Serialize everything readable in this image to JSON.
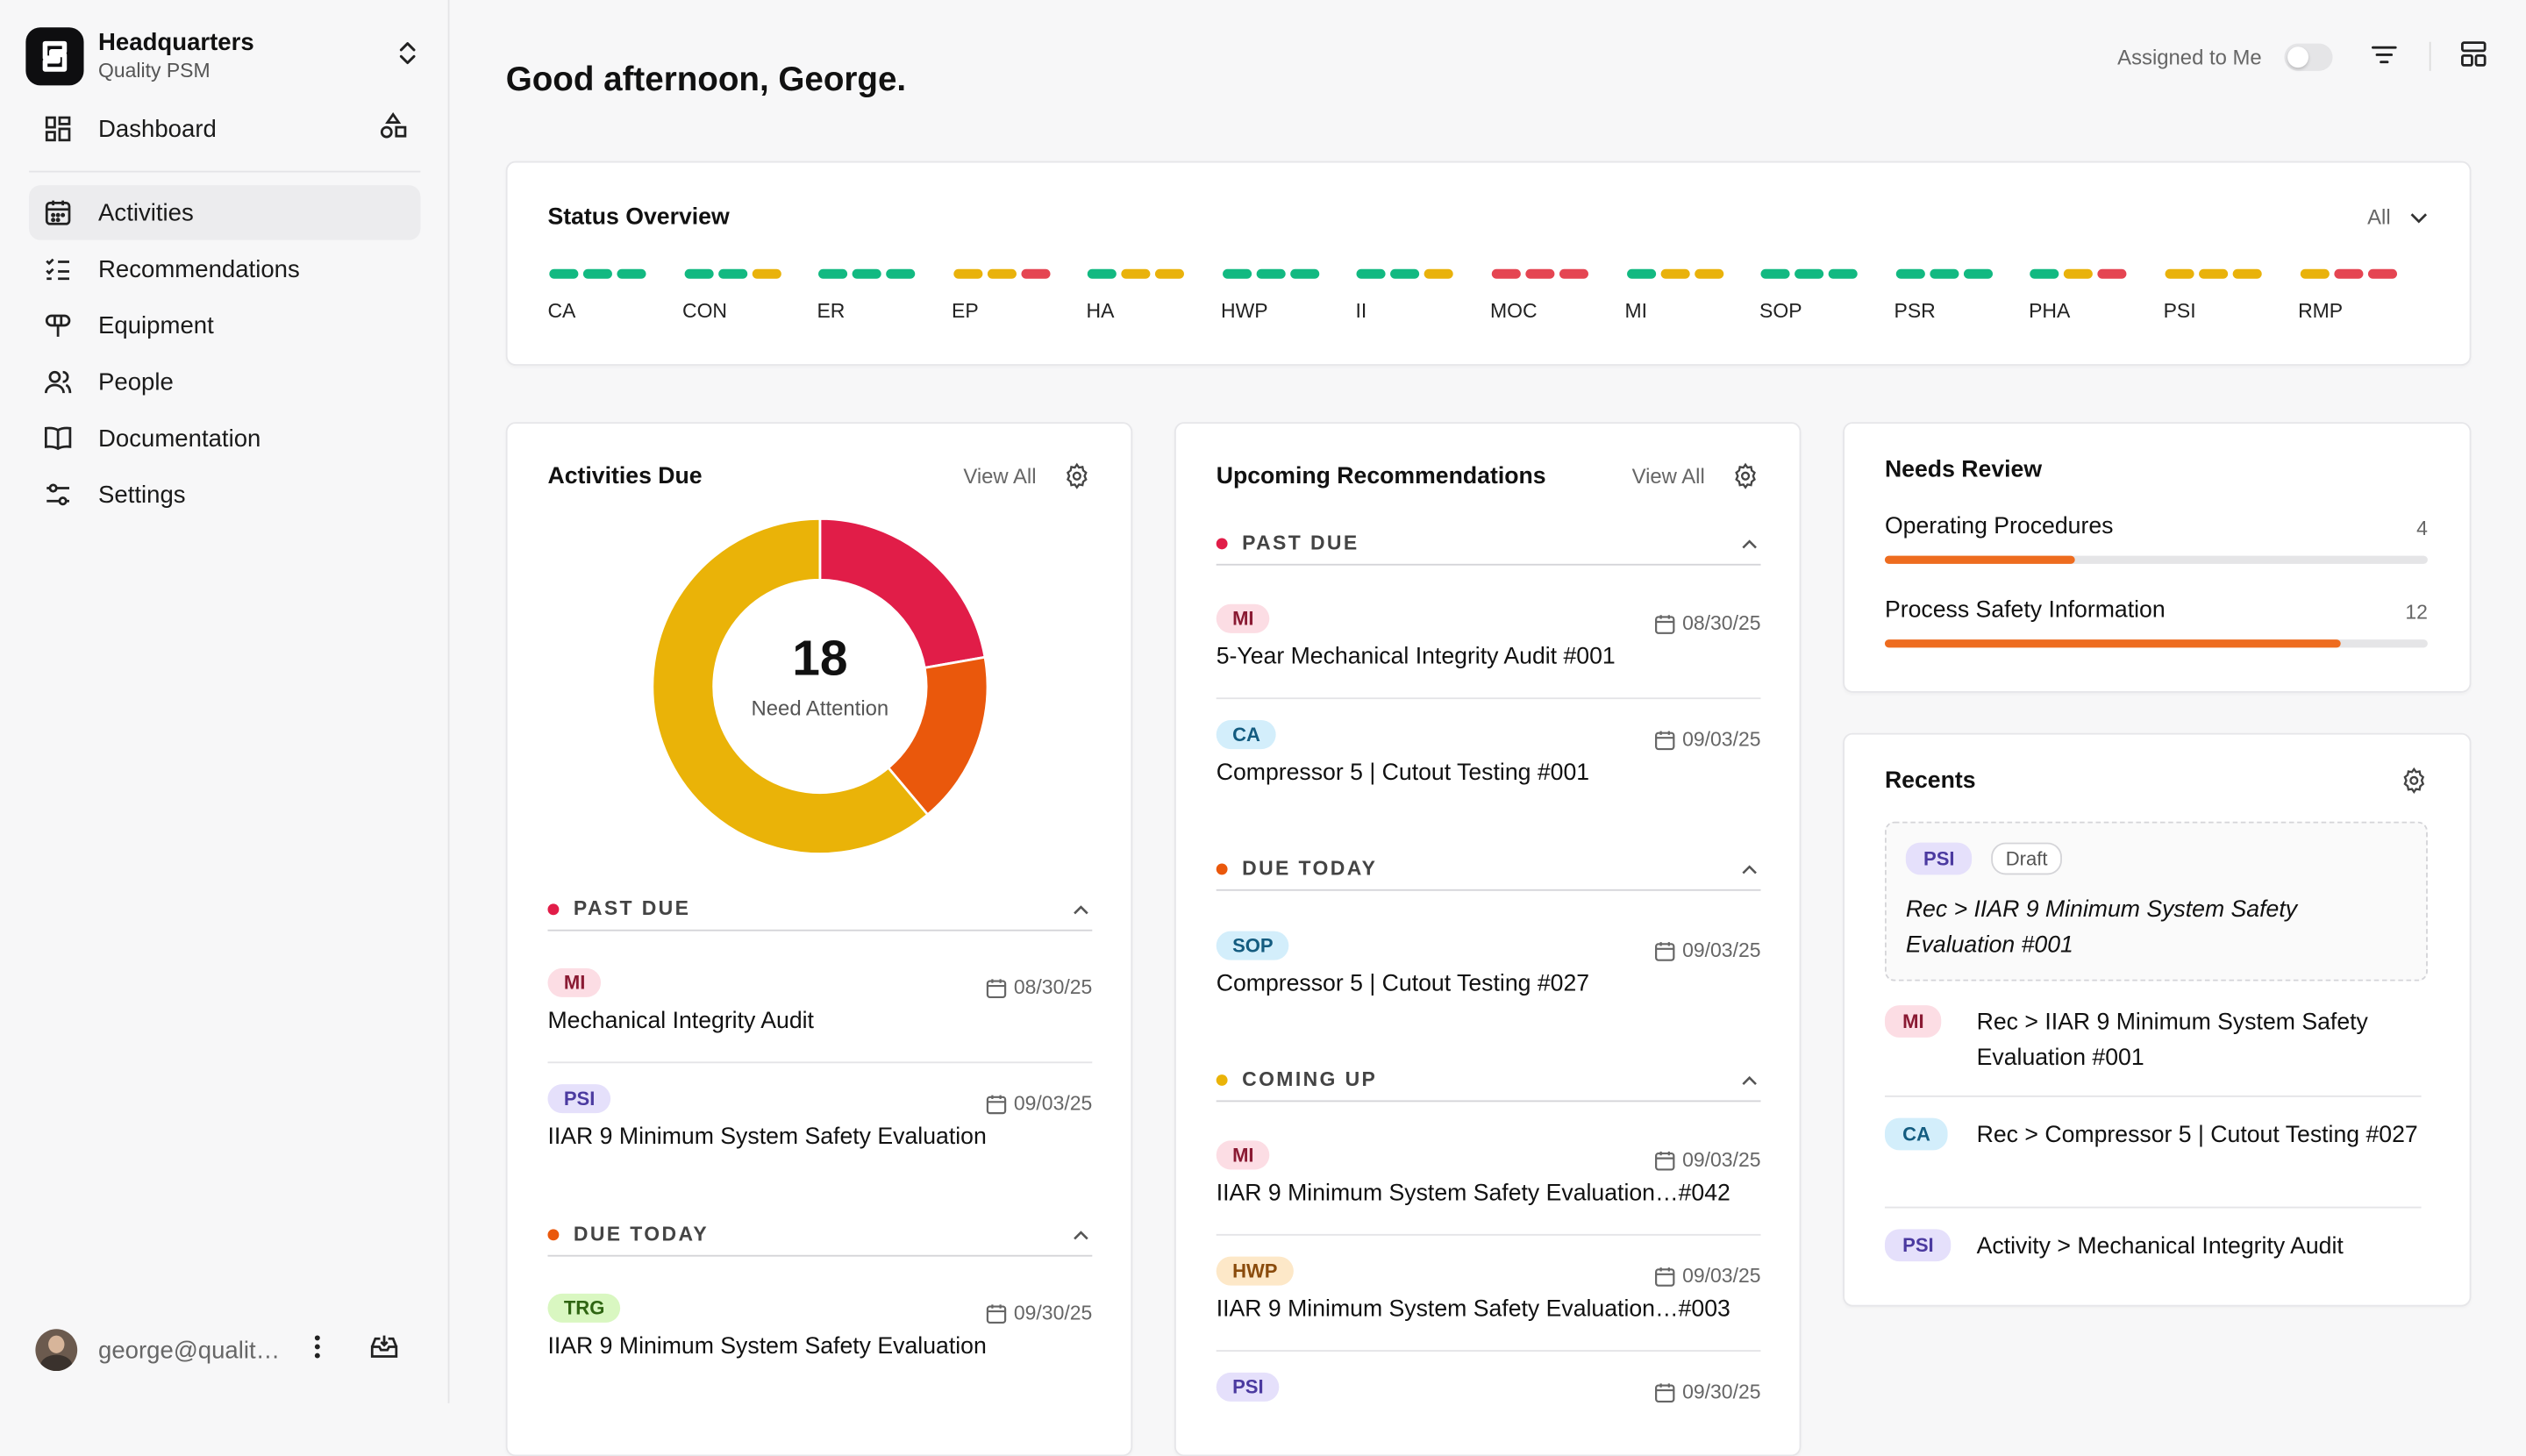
{
  "sidebar": {
    "org_name": "Headquarters",
    "org_sub": "Quality PSM",
    "dashboard": "Dashboard",
    "nav": [
      {
        "label": "Activities"
      },
      {
        "label": "Recommendations"
      },
      {
        "label": "Equipment"
      },
      {
        "label": "People"
      },
      {
        "label": "Documentation"
      },
      {
        "label": "Settings"
      }
    ],
    "user_email": "george@qualit…"
  },
  "header": {
    "greeting": "Good afternoon, George.",
    "assigned_label": "Assigned to Me"
  },
  "status_overview": {
    "title": "Status Overview",
    "filter": "All",
    "items": [
      {
        "label": "CA",
        "dots": [
          "green",
          "green",
          "green"
        ]
      },
      {
        "label": "CON",
        "dots": [
          "green",
          "green",
          "yellow"
        ]
      },
      {
        "label": "ER",
        "dots": [
          "green",
          "green",
          "green"
        ]
      },
      {
        "label": "EP",
        "dots": [
          "yellow",
          "yellow",
          "red"
        ]
      },
      {
        "label": "HA",
        "dots": [
          "green",
          "yellow",
          "yellow"
        ]
      },
      {
        "label": "HWP",
        "dots": [
          "green",
          "green",
          "green"
        ]
      },
      {
        "label": "II",
        "dots": [
          "green",
          "green",
          "yellow"
        ]
      },
      {
        "label": "MOC",
        "dots": [
          "red",
          "red",
          "red"
        ]
      },
      {
        "label": "MI",
        "dots": [
          "green",
          "yellow",
          "yellow"
        ]
      },
      {
        "label": "SOP",
        "dots": [
          "green",
          "green",
          "green"
        ]
      },
      {
        "label": "PSR",
        "dots": [
          "green",
          "green",
          "green"
        ]
      },
      {
        "label": "PHA",
        "dots": [
          "green",
          "yellow",
          "red"
        ]
      },
      {
        "label": "PSI",
        "dots": [
          "yellow",
          "yellow",
          "yellow"
        ]
      },
      {
        "label": "RMP",
        "dots": [
          "yellow",
          "red",
          "red"
        ]
      }
    ]
  },
  "colors": {
    "green": "#12b981",
    "yellow": "#e9b20b",
    "red": "#e54552",
    "orange": "#ee6c1f"
  },
  "activities_due": {
    "title": "Activities Due",
    "view_all": "View All",
    "count": "18",
    "count_label": "Need Attention",
    "donut": [
      {
        "name": "Past Due",
        "value": 4,
        "color": "#e11d48"
      },
      {
        "name": "Due Today",
        "value": 3,
        "color": "#ea580c"
      },
      {
        "name": "Coming Up",
        "value": 11,
        "color": "#eab308"
      }
    ],
    "past_due_label": "PAST DUE",
    "due_today_label": "DUE TODAY",
    "items": [
      {
        "tag": "MI",
        "date": "08/30/25",
        "title": "Mechanical Integrity Audit"
      },
      {
        "tag": "PSI",
        "date": "09/03/25",
        "title": "IIAR 9 Minimum System Safety Evaluation"
      },
      {
        "tag": "TRG",
        "date": "09/30/25",
        "title": "IIAR 9 Minimum System Safety Evaluation"
      }
    ]
  },
  "upcoming_recs": {
    "title": "Upcoming Recommendations",
    "view_all": "View All",
    "past_due_label": "PAST DUE",
    "due_today_label": "DUE TODAY",
    "coming_up_label": "COMING UP",
    "items": [
      {
        "tag": "MI",
        "date": "08/30/25",
        "title": "5-Year Mechanical Integrity Audit #001"
      },
      {
        "tag": "CA",
        "date": "09/03/25",
        "title": "Compressor 5 | Cutout Testing #001"
      },
      {
        "tag": "SOP",
        "date": "09/03/25",
        "title": "Compressor 5 | Cutout Testing #027"
      },
      {
        "tag": "MI",
        "date": "09/03/25",
        "title": "IIAR 9 Minimum System Safety Evaluation…#042"
      },
      {
        "tag": "HWP",
        "date": "09/03/25",
        "title": "IIAR 9 Minimum System Safety Evaluation…#003"
      },
      {
        "tag": "PSI",
        "date": "09/30/25",
        "title": ""
      }
    ]
  },
  "needs_review": {
    "title": "Needs Review",
    "rows": [
      {
        "label": "Operating Procedures",
        "count": "4",
        "progress": 0.35
      },
      {
        "label": "Process Safety Information",
        "count": "12",
        "progress": 0.84
      }
    ]
  },
  "recents": {
    "title": "Recents",
    "draft_tag": "PSI",
    "draft_status": "Draft",
    "draft_text": "Rec > IIAR 9 Minimum System Safety Evaluation #001",
    "items": [
      {
        "tag": "MI",
        "text": "Rec > IIAR 9 Minimum System Safety Evaluation #001"
      },
      {
        "tag": "CA",
        "text": "Rec > Compressor 5 | Cutout Testing #027"
      },
      {
        "tag": "PSI",
        "text": "Activity > Mechanical Integrity Audit"
      }
    ]
  }
}
